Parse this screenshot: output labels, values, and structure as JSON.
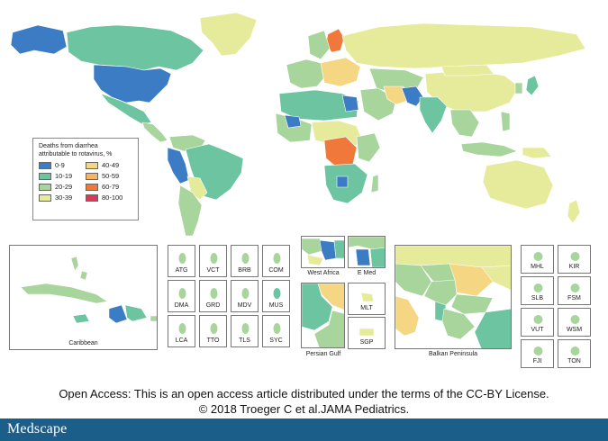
{
  "colors": {
    "b0_9": "#3b7cc4",
    "b10_19": "#6cc4a0",
    "b20_29": "#a8d59c",
    "b30_39": "#e6eb9c",
    "b40_49": "#f5d783",
    "b50_59": "#f7b467",
    "b60_79": "#f0783a",
    "b80_100": "#d93a5a",
    "ocean": "#ffffff",
    "border": "#ffffff"
  },
  "legend": {
    "title_line1": "Deaths from diarrhea",
    "title_line2": "attributable to rotavirus, %",
    "items": [
      {
        "label": "0-9"
      },
      {
        "label": "40-49"
      },
      {
        "label": "10-19"
      },
      {
        "label": "50-59"
      },
      {
        "label": "20-29"
      },
      {
        "label": "60-79"
      },
      {
        "label": "30-39"
      },
      {
        "label": "80-100"
      }
    ]
  },
  "insets": {
    "caribbean": "Caribbean",
    "small": [
      "ATG",
      "VCT",
      "BRB",
      "COM",
      "DMA",
      "GRD",
      "MDV",
      "MUS",
      "LCA",
      "TTO",
      "TLS",
      "SYC"
    ],
    "west_africa": "West Africa",
    "e_med": "E Med",
    "persian_gulf": "Persian Gulf",
    "mlt": "MLT",
    "sgp": "SGP",
    "balkan": "Balkan Peninsula",
    "pacific": [
      "MHL",
      "KIR",
      "SLB",
      "FSM",
      "VUT",
      "WSM",
      "FJI",
      "TON"
    ]
  },
  "footer": {
    "line1": "Open Access: This is an open access article distributed under the terms of the CC-BY License.",
    "line2": "© 2018 Troeger C et al.JAMA Pediatrics.",
    "brand": "Medscape"
  }
}
